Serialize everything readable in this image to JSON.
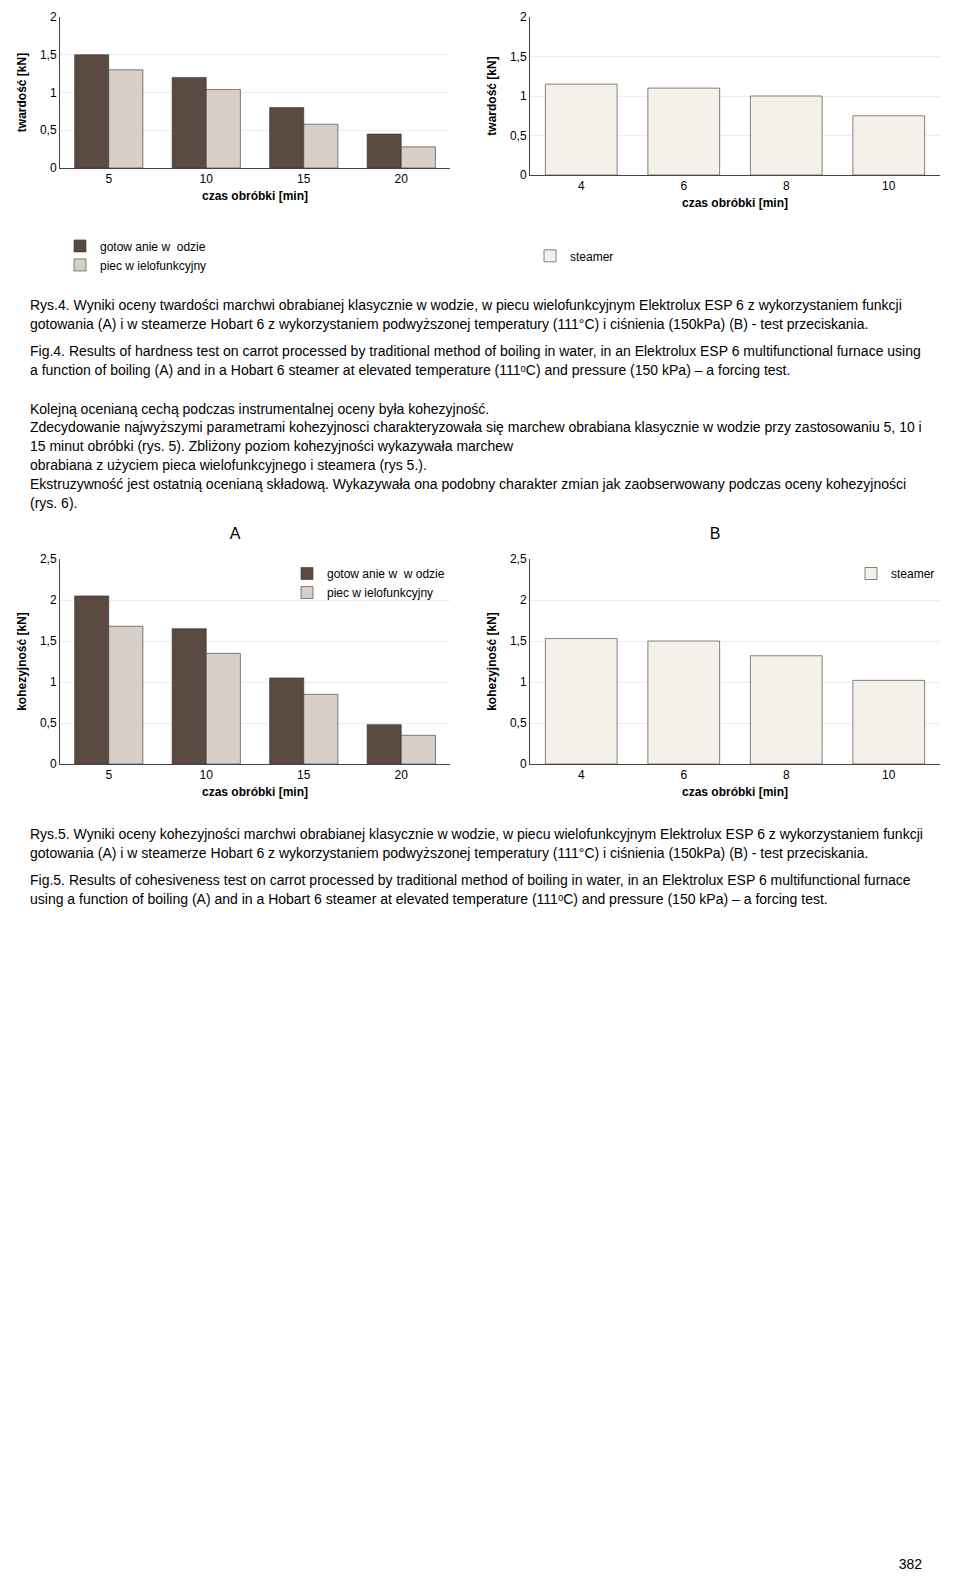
{
  "chart_data": [
    {
      "type": "bar",
      "x_label": "czas obróbki [min]",
      "y_label": "twardość [kN]",
      "categories": [
        "5",
        "10",
        "15",
        "20"
      ],
      "series": [
        {
          "name": "gotow anie w  odzie",
          "color": "#5a4a42",
          "values": [
            1.5,
            1.2,
            0.8,
            0.45
          ]
        },
        {
          "name": "piec w ielofunkcyjny",
          "color": "#d8cfc8",
          "values": [
            1.3,
            1.04,
            0.58,
            0.28
          ]
        }
      ],
      "ylim": [
        0,
        2
      ],
      "yticks": [
        0,
        {
          "value": 0.5,
          "label": "0,5"
        },
        1,
        {
          "value": 1.5,
          "label": "1,5"
        },
        2
      ],
      "grid": true,
      "legend": "bottom left"
    },
    {
      "type": "bar",
      "x_label": "czas obróbki [min]",
      "y_label": "twardość [kN]",
      "categories": [
        "4",
        "6",
        "8",
        "10"
      ],
      "series": [
        {
          "name": "steamer",
          "color": "#f5f0ea",
          "values": [
            1.15,
            1.1,
            1.0,
            0.75
          ]
        }
      ],
      "ylim": [
        0,
        2
      ],
      "yticks": [
        0,
        {
          "value": 0.5,
          "label": "0,5"
        },
        1,
        {
          "value": 1.5,
          "label": "1,5"
        },
        2
      ],
      "grid": true,
      "legend": "bottom left"
    },
    {
      "type": "bar",
      "title": "A",
      "x_label": "czas obróbki [min]",
      "y_label": "kohezyjność [kN]",
      "categories": [
        "5",
        "10",
        "15",
        "20"
      ],
      "series": [
        {
          "name": "gotow anie w  w odzie",
          "color": "#5a4a42",
          "values": [
            2.05,
            1.65,
            1.05,
            0.48
          ]
        },
        {
          "name": "piec w ielofunkcyjny",
          "color": "#d8cfc8",
          "values": [
            1.68,
            1.35,
            0.85,
            0.35
          ]
        }
      ],
      "ylim": [
        0,
        2.5
      ],
      "yticks": [
        0,
        {
          "value": 0.5,
          "label": "0,5"
        },
        1,
        {
          "value": 1.5,
          "label": "1,5"
        },
        2,
        {
          "value": 2.5,
          "label": "2,5"
        }
      ],
      "grid": true,
      "legend": "upper right"
    },
    {
      "type": "bar",
      "title": "B",
      "x_label": "czas obróbki [min]",
      "y_label": "kohezyjność [kN]",
      "categories": [
        "4",
        "6",
        "8",
        "10"
      ],
      "series": [
        {
          "name": "steamer",
          "color": "#f5f0ea",
          "values": [
            1.53,
            1.5,
            1.32,
            1.02
          ]
        }
      ],
      "ylim": [
        0,
        2.5
      ],
      "yticks": [
        0,
        {
          "value": 0.5,
          "label": "0,5"
        },
        1,
        {
          "value": 1.5,
          "label": "1,5"
        },
        2,
        {
          "value": 2.5,
          "label": "2,5"
        }
      ],
      "grid": true,
      "legend": "upper right"
    }
  ],
  "annotations": [
    [
      "Rys.4. Wyniki oceny twardości marchwi obrabianej klasycznie w wodzie, w piecu wielofunkcyjnym Elektrolux ESP 6 z wykorzystaniem funkcji gotowania (A) i w steamerze Hobart 6 z wykorzystaniem podwyższonej temperatury (111°C) i ciśnienia (150kPa) (B) - test przeciskania.",
      "Fig.4. Results of hardness test on carrot processed by traditional method of boiling in water, in an Elektrolux ESP 6 multifunctional furnace using a function of boiling (A) and in a Hobart 6 steamer at elevated temperature (111ᵒC) and pressure (150 kPa) – a forcing test."
    ],
    [
      "Kolejną ocenianą cechą podczas instrumentalnej oceny była kohezyjność.",
      "Zdecydowanie najwyższymi parametrami kohezyjnosci charakteryzowała się marchew obrabiana klasycznie w wodzie przy zastosowaniu 5, 10 i 15 minut obróbki (rys. 5). Zbliżony poziom kohezyjności wykazywała marchew",
      "obrabiana z użyciem pieca wielofunkcyjnego i steamera (rys 5.).",
      "Ekstruzywność jest ostatnią ocenianą składową. Wykazywała ona podobny charakter zmian jak zaobserwowany podczas oceny kohezyjności (rys. 6)."
    ],
    [
      "Rys.5. Wyniki oceny kohezyjności marchwi obrabianej klasycznie w wodzie, w piecu wielofunkcyjnym Elektrolux ESP 6 z wykorzystaniem funkcji gotowania (A) i w steamerze Hobart 6 z wykorzystaniem podwyższonej temperatury (111°C) i ciśnienia (150kPa) (B) - test przeciskania.",
      "Fig.5. Results of cohesiveness test on carrot processed by traditional method of boiling in water, in an Elektrolux ESP 6 multifunctional furnace using a function of boiling (A) and in a Hobart 6 steamer at elevated temperature (111ᵒC) and pressure (150 kPa) – a forcing test."
    ],
    [
      "382"
    ]
  ]
}
